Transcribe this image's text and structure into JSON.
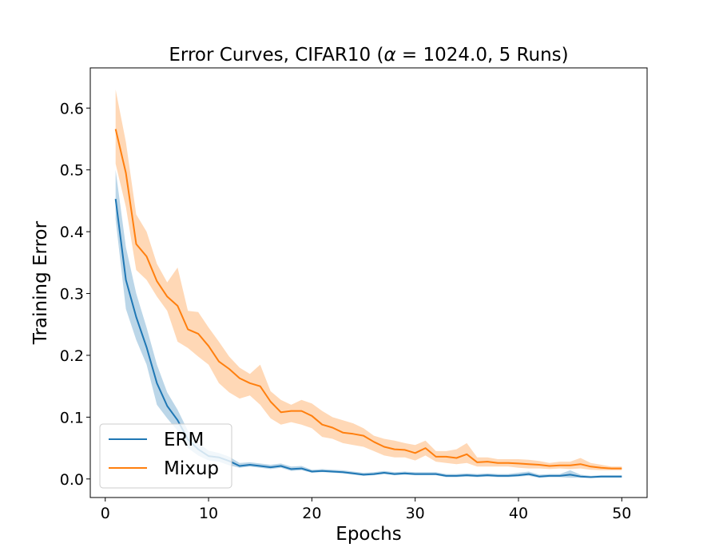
{
  "chart_data": {
    "type": "line",
    "title_pre": "Error Curves, CIFAR10 (",
    "title_symbol": "α",
    "title_post": " = 1024.0, 5 Runs)",
    "xlabel": "Epochs",
    "ylabel": "Training Error",
    "xlim": [
      -1.45,
      52.45
    ],
    "ylim": [
      -0.03,
      0.665
    ],
    "xticks": [
      0,
      10,
      20,
      30,
      40,
      50
    ],
    "xtick_labels": [
      "0",
      "10",
      "20",
      "30",
      "40",
      "50"
    ],
    "yticks": [
      0.0,
      0.1,
      0.2,
      0.3,
      0.4,
      0.5,
      0.6
    ],
    "ytick_labels": [
      "0.0",
      "0.1",
      "0.2",
      "0.3",
      "0.4",
      "0.5",
      "0.6"
    ],
    "grid": false,
    "legend_position": "bottom-left",
    "x": [
      1,
      2,
      3,
      4,
      5,
      6,
      7,
      8,
      9,
      10,
      11,
      12,
      13,
      14,
      15,
      16,
      17,
      18,
      19,
      20,
      21,
      22,
      23,
      24,
      25,
      26,
      27,
      28,
      29,
      30,
      31,
      32,
      33,
      34,
      35,
      36,
      37,
      38,
      39,
      40,
      41,
      42,
      43,
      44,
      45,
      46,
      47,
      48,
      49,
      50
    ],
    "series": [
      {
        "name": "ERM",
        "color": "#1f77b4",
        "values": [
          0.453,
          0.322,
          0.262,
          0.213,
          0.155,
          0.118,
          0.095,
          0.064,
          0.048,
          0.037,
          0.035,
          0.029,
          0.021,
          0.023,
          0.021,
          0.019,
          0.021,
          0.016,
          0.017,
          0.012,
          0.013,
          0.012,
          0.011,
          0.009,
          0.007,
          0.008,
          0.01,
          0.008,
          0.009,
          0.008,
          0.008,
          0.008,
          0.005,
          0.005,
          0.006,
          0.005,
          0.006,
          0.005,
          0.005,
          0.006,
          0.008,
          0.004,
          0.005,
          0.005,
          0.007,
          0.004,
          0.003,
          0.004,
          0.004,
          0.004
        ],
        "lower": [
          0.42,
          0.275,
          0.225,
          0.185,
          0.12,
          0.098,
          0.078,
          0.05,
          0.038,
          0.03,
          0.028,
          0.022,
          0.018,
          0.02,
          0.018,
          0.016,
          0.018,
          0.013,
          0.014,
          0.01,
          0.011,
          0.01,
          0.009,
          0.007,
          0.005,
          0.006,
          0.008,
          0.006,
          0.007,
          0.006,
          0.006,
          0.006,
          0.003,
          0.003,
          0.004,
          0.003,
          0.004,
          0.003,
          0.003,
          0.004,
          0.005,
          0.002,
          0.003,
          0.003,
          0.002,
          0.002,
          0.002,
          0.002,
          0.002,
          0.002
        ],
        "upper": [
          0.5,
          0.375,
          0.3,
          0.245,
          0.185,
          0.14,
          0.112,
          0.078,
          0.058,
          0.046,
          0.042,
          0.036,
          0.026,
          0.027,
          0.025,
          0.023,
          0.025,
          0.02,
          0.021,
          0.015,
          0.016,
          0.015,
          0.014,
          0.012,
          0.01,
          0.011,
          0.013,
          0.011,
          0.012,
          0.011,
          0.011,
          0.011,
          0.008,
          0.008,
          0.009,
          0.008,
          0.009,
          0.008,
          0.008,
          0.01,
          0.012,
          0.007,
          0.008,
          0.008,
          0.014,
          0.007,
          0.005,
          0.006,
          0.006,
          0.006
        ]
      },
      {
        "name": "Mixup",
        "color": "#ff7f0e",
        "values": [
          0.566,
          0.495,
          0.38,
          0.36,
          0.32,
          0.295,
          0.28,
          0.242,
          0.235,
          0.215,
          0.19,
          0.178,
          0.163,
          0.155,
          0.15,
          0.125,
          0.108,
          0.11,
          0.11,
          0.102,
          0.088,
          0.083,
          0.075,
          0.073,
          0.07,
          0.06,
          0.052,
          0.048,
          0.047,
          0.042,
          0.05,
          0.036,
          0.036,
          0.034,
          0.04,
          0.027,
          0.028,
          0.026,
          0.026,
          0.025,
          0.024,
          0.023,
          0.021,
          0.022,
          0.022,
          0.024,
          0.02,
          0.018,
          0.017,
          0.017
        ],
        "lower": [
          0.51,
          0.44,
          0.338,
          0.322,
          0.295,
          0.272,
          0.222,
          0.212,
          0.198,
          0.185,
          0.155,
          0.14,
          0.13,
          0.135,
          0.12,
          0.098,
          0.088,
          0.092,
          0.088,
          0.082,
          0.068,
          0.065,
          0.058,
          0.055,
          0.052,
          0.045,
          0.038,
          0.035,
          0.035,
          0.03,
          0.038,
          0.028,
          0.026,
          0.024,
          0.026,
          0.02,
          0.02,
          0.02,
          0.02,
          0.018,
          0.017,
          0.017,
          0.016,
          0.017,
          0.016,
          0.017,
          0.015,
          0.014,
          0.014,
          0.014
        ],
        "upper": [
          0.63,
          0.545,
          0.428,
          0.4,
          0.348,
          0.318,
          0.342,
          0.272,
          0.27,
          0.245,
          0.222,
          0.198,
          0.18,
          0.17,
          0.185,
          0.142,
          0.128,
          0.12,
          0.128,
          0.122,
          0.11,
          0.1,
          0.095,
          0.09,
          0.082,
          0.07,
          0.065,
          0.062,
          0.058,
          0.055,
          0.062,
          0.045,
          0.045,
          0.048,
          0.058,
          0.035,
          0.035,
          0.032,
          0.032,
          0.032,
          0.031,
          0.029,
          0.026,
          0.028,
          0.028,
          0.034,
          0.026,
          0.023,
          0.02,
          0.02
        ]
      }
    ]
  }
}
